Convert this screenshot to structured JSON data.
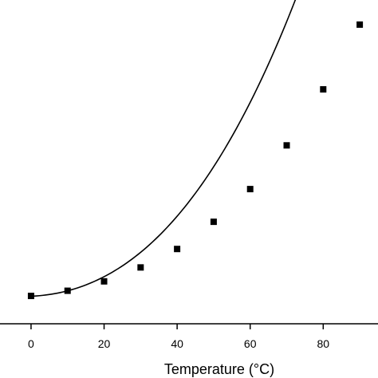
{
  "chart_data": {
    "type": "scatter",
    "xlabel": "Temperature (°C)",
    "ylabel": "",
    "title": "",
    "xlim": [
      -8.5,
      95
    ],
    "ylim": [
      0,
      100
    ],
    "x_ticks": [
      0,
      20,
      40,
      60,
      80
    ],
    "grid": false,
    "legend": "none",
    "series": [
      {
        "points": [
          {
            "x": 0,
            "y": 8.6
          },
          {
            "x": 10,
            "y": 10.2
          },
          {
            "x": 20,
            "y": 13.1
          },
          {
            "x": 30,
            "y": 17.4
          },
          {
            "x": 40,
            "y": 23.1
          },
          {
            "x": 50,
            "y": 31.5
          },
          {
            "x": 60,
            "y": 41.6
          },
          {
            "x": 70,
            "y": 55.1
          },
          {
            "x": 80,
            "y": 72.4
          },
          {
            "x": 90,
            "y": 92.4
          }
        ],
        "fit": {
          "type": "polynomial",
          "coeffs": [
            8.5,
            0.05,
            0.011,
            8e-05
          ],
          "x_range": [
            0,
            95
          ]
        },
        "color": "#000000"
      }
    ]
  }
}
